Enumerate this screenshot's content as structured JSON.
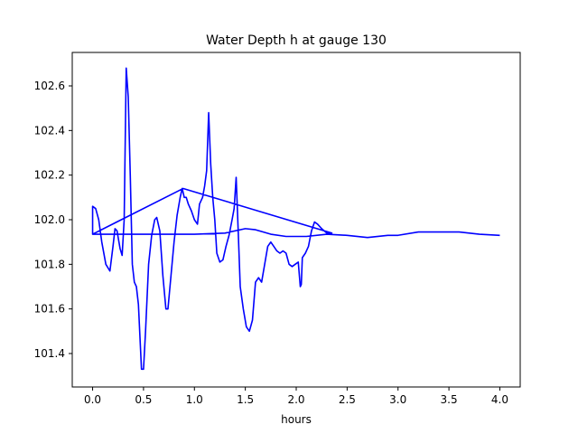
{
  "chart_data": {
    "type": "line",
    "title": "Water Depth h at gauge 130",
    "xlabel": "hours",
    "ylabel": "",
    "xlim": [
      -0.2,
      4.2
    ],
    "ylim": [
      101.25,
      102.75
    ],
    "xticks": [
      0.0,
      0.5,
      1.0,
      1.5,
      2.0,
      2.5,
      3.0,
      3.5,
      4.0
    ],
    "xtick_labels": [
      "0.0",
      "0.5",
      "1.0",
      "1.5",
      "2.0",
      "2.5",
      "3.0",
      "3.5",
      "4.0"
    ],
    "yticks": [
      101.4,
      101.6,
      101.8,
      102.0,
      102.2,
      102.4,
      102.6
    ],
    "ytick_labels": [
      "101.4",
      "101.6",
      "101.8",
      "102.0",
      "102.2",
      "102.4",
      "102.6"
    ],
    "grid": false,
    "series": [
      {
        "color": "#0000ff",
        "points": [
          [
            0.0,
            101.935
          ],
          [
            0.0,
            102.06
          ],
          [
            0.03,
            102.05
          ],
          [
            0.06,
            102.0
          ],
          [
            0.09,
            101.9
          ],
          [
            0.13,
            101.8
          ],
          [
            0.17,
            101.77
          ],
          [
            0.2,
            101.88
          ],
          [
            0.22,
            101.96
          ],
          [
            0.24,
            101.95
          ],
          [
            0.27,
            101.87
          ],
          [
            0.29,
            101.84
          ],
          [
            0.31,
            102.0
          ],
          [
            0.33,
            102.68
          ],
          [
            0.35,
            102.55
          ],
          [
            0.37,
            102.2
          ],
          [
            0.39,
            101.8
          ],
          [
            0.41,
            101.72
          ],
          [
            0.43,
            101.7
          ],
          [
            0.45,
            101.62
          ],
          [
            0.48,
            101.33
          ],
          [
            0.5,
            101.33
          ],
          [
            0.52,
            101.5
          ],
          [
            0.55,
            101.8
          ],
          [
            0.58,
            101.93
          ],
          [
            0.61,
            102.0
          ],
          [
            0.63,
            102.01
          ],
          [
            0.66,
            101.95
          ],
          [
            0.69,
            101.75
          ],
          [
            0.72,
            101.6
          ],
          [
            0.74,
            101.6
          ],
          [
            0.77,
            101.75
          ],
          [
            0.8,
            101.9
          ],
          [
            0.83,
            102.02
          ],
          [
            0.86,
            102.1
          ],
          [
            0.88,
            102.14
          ],
          [
            0.9,
            102.1
          ],
          [
            0.92,
            102.1
          ],
          [
            0.94,
            102.07
          ],
          [
            0.97,
            102.04
          ],
          [
            1.0,
            102.0
          ],
          [
            1.03,
            101.98
          ],
          [
            1.05,
            102.07
          ],
          [
            1.08,
            102.1
          ],
          [
            1.1,
            102.15
          ],
          [
            1.12,
            102.22
          ],
          [
            1.14,
            102.48
          ],
          [
            1.16,
            102.25
          ],
          [
            1.18,
            102.1
          ],
          [
            1.2,
            102.0
          ],
          [
            1.22,
            101.85
          ],
          [
            1.25,
            101.81
          ],
          [
            1.28,
            101.82
          ],
          [
            1.31,
            101.88
          ],
          [
            1.34,
            101.93
          ],
          [
            1.37,
            102.0
          ],
          [
            1.39,
            102.05
          ],
          [
            1.41,
            102.19
          ],
          [
            1.43,
            101.95
          ],
          [
            1.45,
            101.7
          ],
          [
            1.48,
            101.6
          ],
          [
            1.51,
            101.52
          ],
          [
            1.54,
            101.5
          ],
          [
            1.57,
            101.55
          ],
          [
            1.6,
            101.72
          ],
          [
            1.63,
            101.74
          ],
          [
            1.66,
            101.72
          ],
          [
            1.69,
            101.8
          ],
          [
            1.72,
            101.88
          ],
          [
            1.75,
            101.9
          ],
          [
            1.78,
            101.88
          ],
          [
            1.81,
            101.86
          ],
          [
            1.84,
            101.85
          ],
          [
            1.87,
            101.86
          ],
          [
            1.9,
            101.85
          ],
          [
            1.93,
            101.8
          ],
          [
            1.96,
            101.79
          ],
          [
            1.99,
            101.8
          ],
          [
            2.02,
            101.81
          ],
          [
            2.04,
            101.7
          ],
          [
            2.05,
            101.71
          ],
          [
            2.06,
            101.83
          ],
          [
            2.09,
            101.85
          ],
          [
            2.12,
            101.88
          ],
          [
            2.15,
            101.95
          ],
          [
            2.18,
            101.99
          ],
          [
            2.21,
            101.98
          ],
          [
            2.25,
            101.96
          ],
          [
            2.3,
            101.94
          ],
          [
            2.35,
            101.94
          ],
          [
            0.89,
            102.14
          ],
          [
            0.0,
            101.935
          ],
          [
            1.0,
            101.935
          ],
          [
            1.3,
            101.94
          ],
          [
            1.5,
            101.96
          ],
          [
            1.6,
            101.955
          ],
          [
            1.75,
            101.935
          ],
          [
            1.9,
            101.925
          ],
          [
            2.1,
            101.925
          ],
          [
            2.3,
            101.935
          ],
          [
            2.5,
            101.93
          ],
          [
            2.7,
            101.92
          ],
          [
            2.9,
            101.93
          ],
          [
            3.0,
            101.93
          ],
          [
            3.2,
            101.945
          ],
          [
            3.4,
            101.945
          ],
          [
            3.6,
            101.945
          ],
          [
            3.8,
            101.935
          ],
          [
            4.0,
            101.93
          ]
        ]
      }
    ]
  }
}
